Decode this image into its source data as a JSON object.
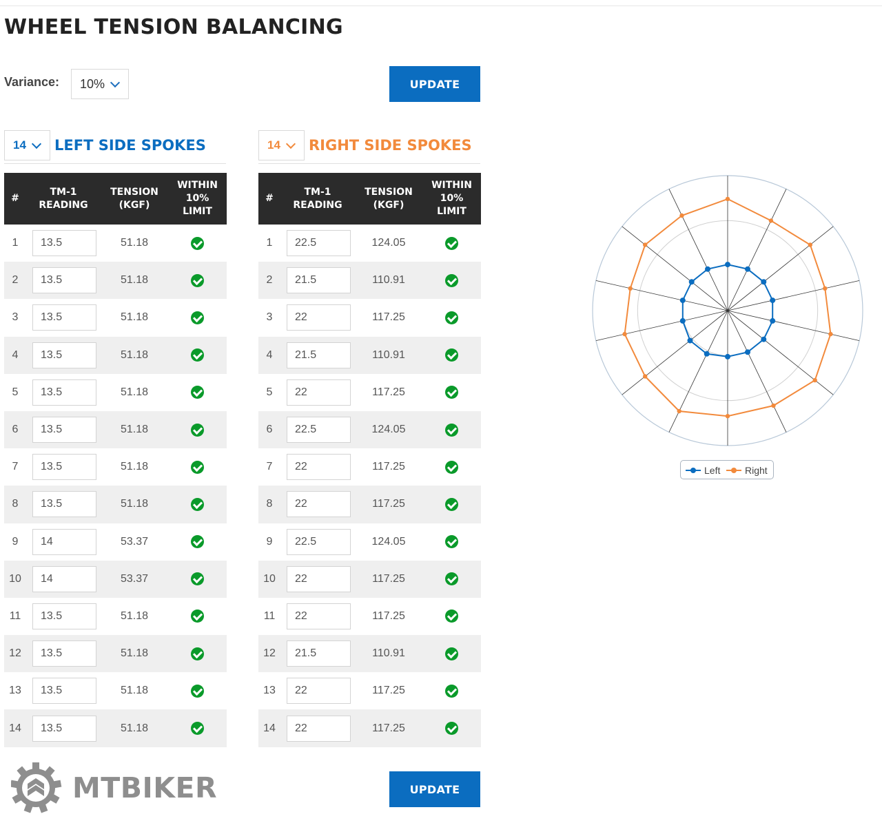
{
  "page": {
    "title": "WHEEL TENSION BALANCING"
  },
  "variance": {
    "label": "Variance:",
    "value": "10%"
  },
  "buttons": {
    "update_top": "UPDATE",
    "update_bottom": "UPDATE"
  },
  "left": {
    "count": "14",
    "title": "LEFT SIDE SPOKES",
    "headers": {
      "num": "#",
      "reading_1": "TM-1",
      "reading_2": "READING",
      "tension_1": "TENSION",
      "tension_2": "(KGF)",
      "within_1": "WITHIN",
      "within_2": "10%",
      "within_3": "LIMIT"
    },
    "rows": [
      {
        "num": "1",
        "reading": "13.5",
        "tension": "51.18"
      },
      {
        "num": "2",
        "reading": "13.5",
        "tension": "51.18"
      },
      {
        "num": "3",
        "reading": "13.5",
        "tension": "51.18"
      },
      {
        "num": "4",
        "reading": "13.5",
        "tension": "51.18"
      },
      {
        "num": "5",
        "reading": "13.5",
        "tension": "51.18"
      },
      {
        "num": "6",
        "reading": "13.5",
        "tension": "51.18"
      },
      {
        "num": "7",
        "reading": "13.5",
        "tension": "51.18"
      },
      {
        "num": "8",
        "reading": "13.5",
        "tension": "51.18"
      },
      {
        "num": "9",
        "reading": "14",
        "tension": "53.37"
      },
      {
        "num": "10",
        "reading": "14",
        "tension": "53.37"
      },
      {
        "num": "11",
        "reading": "13.5",
        "tension": "51.18"
      },
      {
        "num": "12",
        "reading": "13.5",
        "tension": "51.18"
      },
      {
        "num": "13",
        "reading": "13.5",
        "tension": "51.18"
      },
      {
        "num": "14",
        "reading": "13.5",
        "tension": "51.18"
      }
    ]
  },
  "right": {
    "count": "14",
    "title": "RIGHT SIDE SPOKES",
    "headers": {
      "num": "#",
      "reading_1": "TM-1",
      "reading_2": "READING",
      "tension_1": "TENSION",
      "tension_2": "(KGF)",
      "within_1": "WITHIN",
      "within_2": "10%",
      "within_3": "LIMIT"
    },
    "rows": [
      {
        "num": "1",
        "reading": "22.5",
        "tension": "124.05"
      },
      {
        "num": "2",
        "reading": "21.5",
        "tension": "110.91"
      },
      {
        "num": "3",
        "reading": "22",
        "tension": "117.25"
      },
      {
        "num": "4",
        "reading": "21.5",
        "tension": "110.91"
      },
      {
        "num": "5",
        "reading": "22",
        "tension": "117.25"
      },
      {
        "num": "6",
        "reading": "22.5",
        "tension": "124.05"
      },
      {
        "num": "7",
        "reading": "22",
        "tension": "117.25"
      },
      {
        "num": "8",
        "reading": "22",
        "tension": "117.25"
      },
      {
        "num": "9",
        "reading": "22.5",
        "tension": "124.05"
      },
      {
        "num": "10",
        "reading": "22",
        "tension": "117.25"
      },
      {
        "num": "11",
        "reading": "22",
        "tension": "117.25"
      },
      {
        "num": "12",
        "reading": "21.5",
        "tension": "110.91"
      },
      {
        "num": "13",
        "reading": "22",
        "tension": "117.25"
      },
      {
        "num": "14",
        "reading": "22",
        "tension": "117.25"
      }
    ]
  },
  "brand": {
    "logo_text": "MTBIKER"
  },
  "colors": {
    "left": "#0b6dc0",
    "right": "#f28a3c",
    "ok": "#0a9a2a",
    "header_bg": "#2b2b2b"
  },
  "chart_data": {
    "type": "radar",
    "series": [
      {
        "name": "Left",
        "color": "#0b6dc0",
        "values": [
          51.18,
          51.18,
          51.18,
          51.18,
          51.18,
          51.18,
          51.18,
          51.18,
          53.37,
          53.37,
          51.18,
          51.18,
          51.18,
          51.18
        ]
      },
      {
        "name": "Right",
        "color": "#f28a3c",
        "values": [
          124.05,
          110.91,
          117.25,
          110.91,
          117.25,
          124.05,
          117.25,
          117.25,
          124.05,
          117.25,
          117.25,
          110.91,
          117.25,
          117.25
        ]
      }
    ],
    "axis_max": 150,
    "rings": 3,
    "spokes": 14,
    "legend_position": "bottom"
  }
}
